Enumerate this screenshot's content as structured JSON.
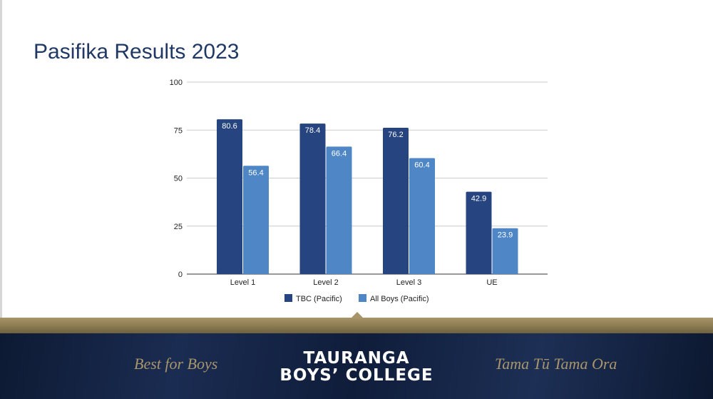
{
  "slide": {
    "title": "Pasifika Results 2023"
  },
  "chart_data": {
    "type": "bar",
    "title": "Pasifika Results 2023",
    "categories": [
      "Level 1",
      "Level 2",
      "Level 3",
      "UE"
    ],
    "series": [
      {
        "name": "TBC (Pacific)",
        "color": "#26447f",
        "values": [
          80.6,
          78.4,
          76.2,
          42.9
        ]
      },
      {
        "name": "All Boys (Pacific)",
        "color": "#4f86c6",
        "values": [
          56.4,
          66.4,
          60.4,
          23.9
        ]
      }
    ],
    "ylim": [
      0,
      100
    ],
    "yticks": [
      0,
      25,
      50,
      75,
      100
    ],
    "grid": true,
    "legend": "bottom",
    "xlabel": "",
    "ylabel": ""
  },
  "footer": {
    "motto_left": "Best for Boys",
    "logo_line1": "TAURANGA",
    "logo_line2": "BOYS’ COLLEGE",
    "motto_right": "Tama Tū Tama Ora",
    "gold_color": "#a89569",
    "navy_color": "#14234a"
  }
}
